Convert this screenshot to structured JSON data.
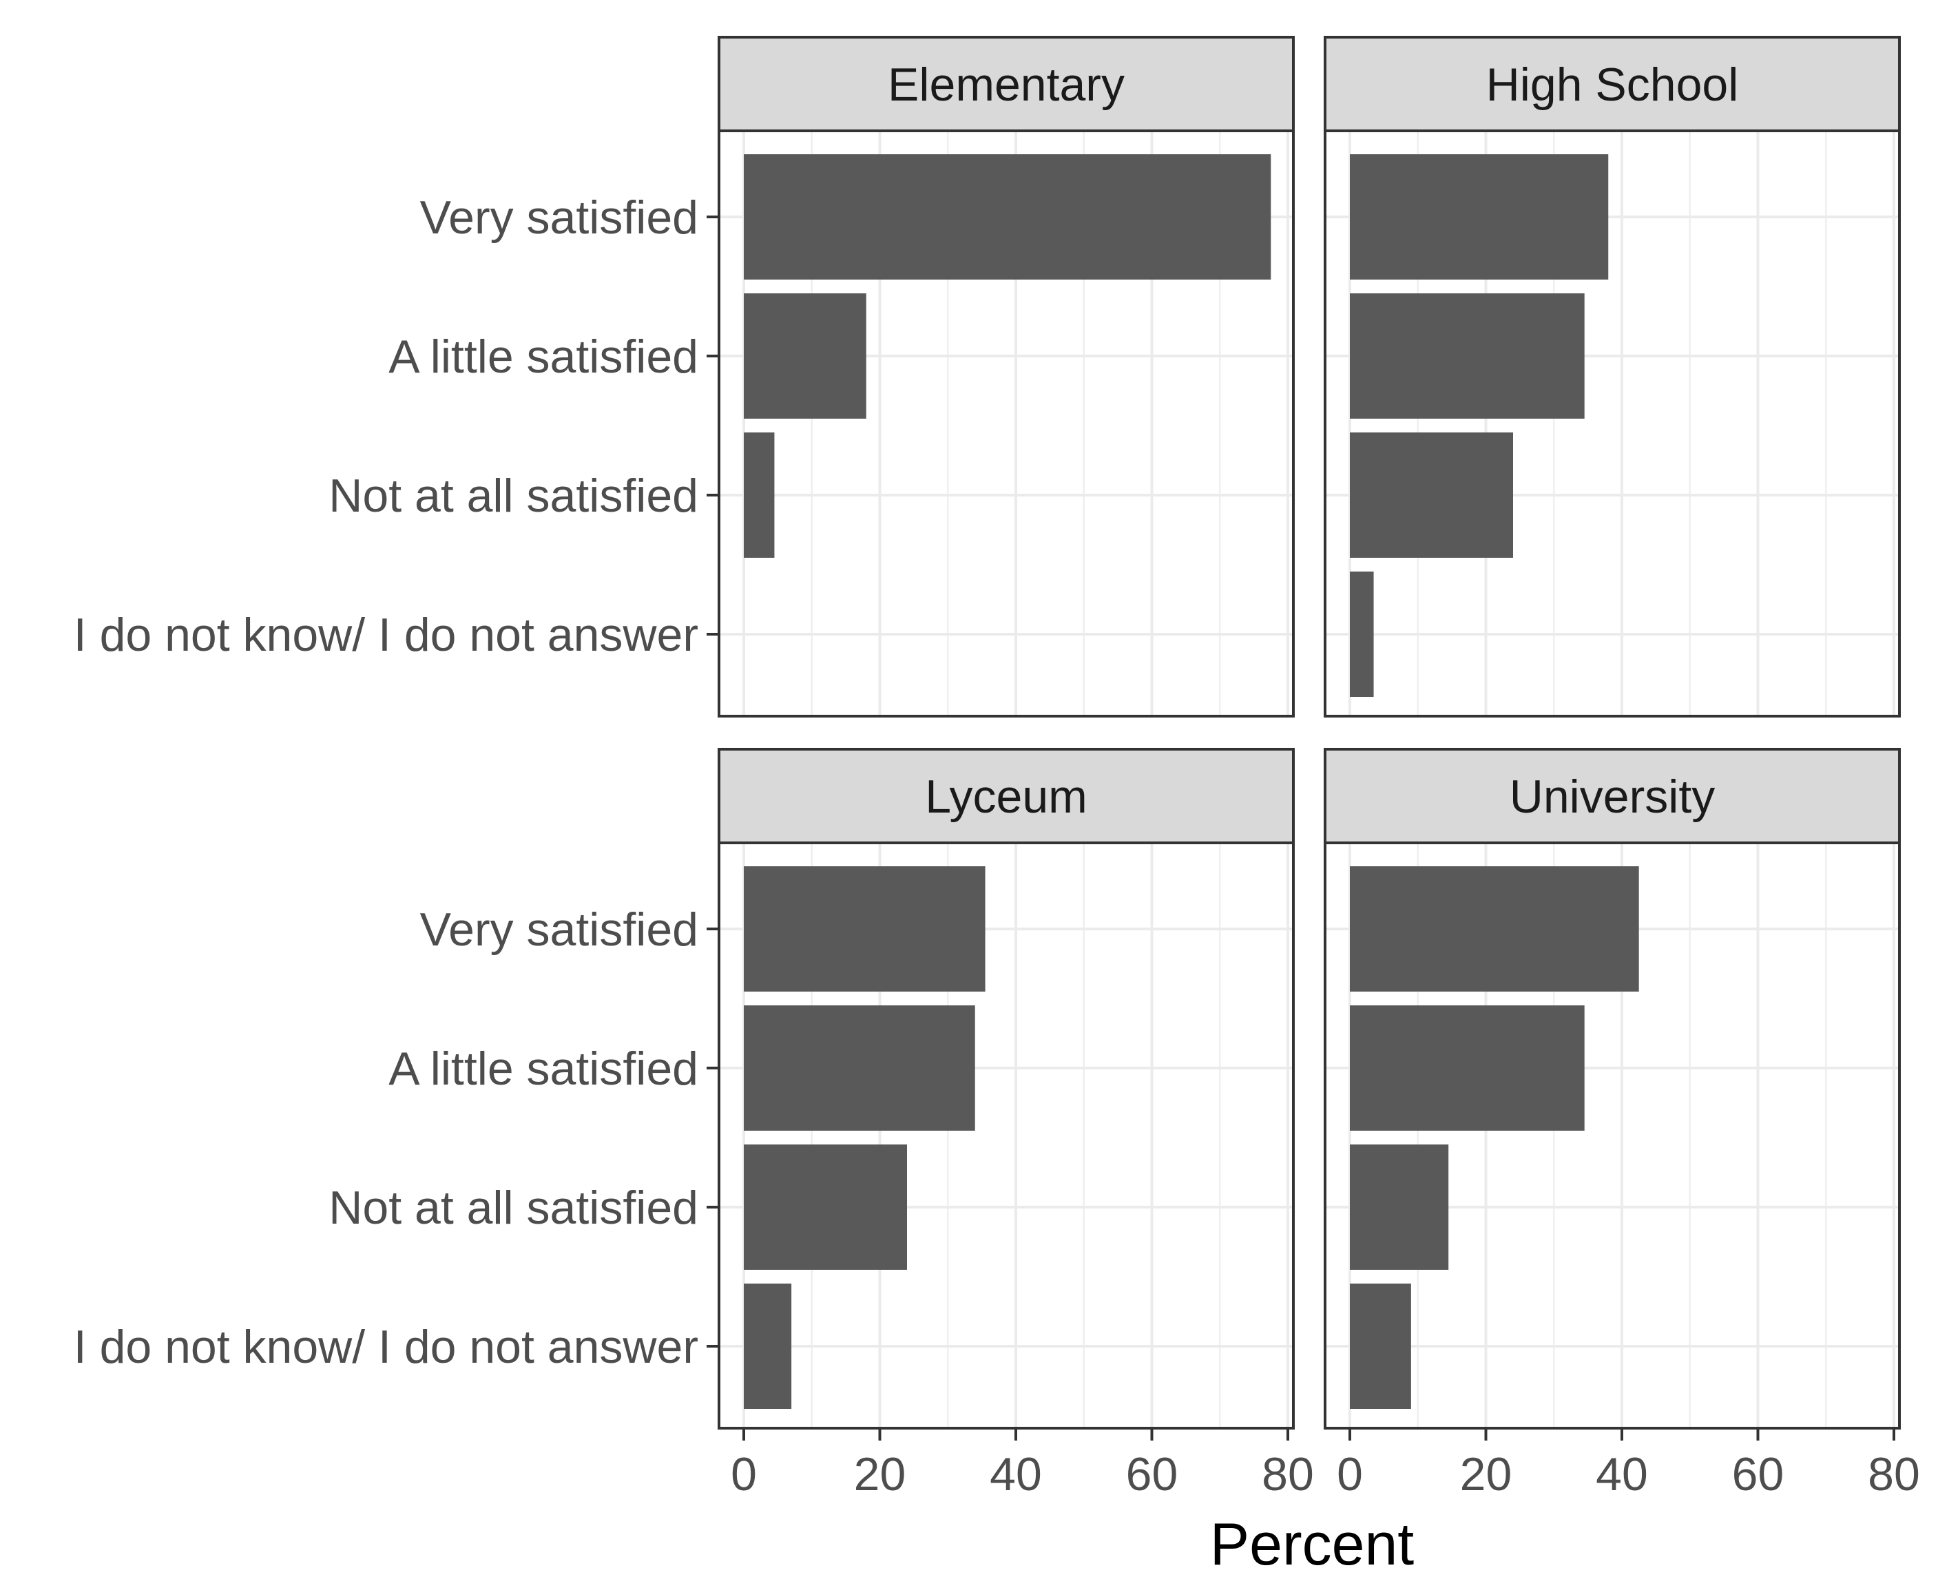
{
  "chart_data": {
    "type": "bar",
    "orientation": "horizontal",
    "layout": "facet-grid-2x2",
    "xlabel": "Percent",
    "ylabel": "",
    "xlim": [
      0,
      80
    ],
    "x_ticks": [
      0,
      20,
      40,
      60,
      80
    ],
    "categories": [
      "Very satisfied",
      "A little satisfied",
      "Not at all satisfied",
      "I do not know/ I do not answer"
    ],
    "grid": true,
    "bar_color": "#595959",
    "strip_color": "#d9d9d9",
    "panel_border_color": "#333333",
    "grid_color": "#ebebeb",
    "facets": [
      {
        "name": "Elementary",
        "values": [
          77.5,
          18,
          4.5,
          0
        ]
      },
      {
        "name": "High School",
        "values": [
          38,
          34.5,
          24,
          3.5
        ]
      },
      {
        "name": "Lyceum",
        "values": [
          35.5,
          34,
          24,
          7
        ]
      },
      {
        "name": "University",
        "values": [
          42.5,
          34.5,
          14.5,
          9
        ]
      }
    ]
  }
}
